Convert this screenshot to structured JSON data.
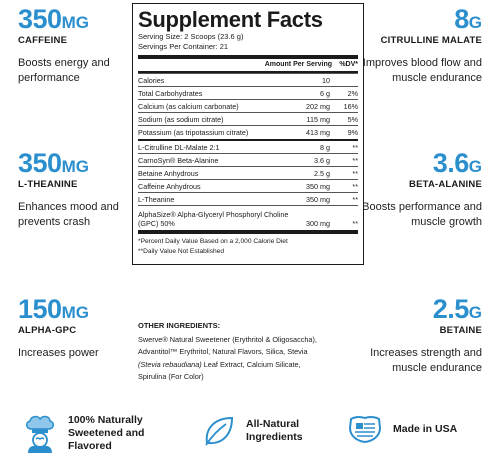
{
  "stats": {
    "caffeine": {
      "num": "350",
      "unit": "MG",
      "label": "CAFFEINE",
      "desc": "Boosts energy and performance"
    },
    "theanine": {
      "num": "350",
      "unit": "MG",
      "label": "L-THEANINE",
      "desc": "Enhances mood and prevents crash"
    },
    "alphagpc": {
      "num": "150",
      "unit": "MG",
      "label": "ALPHA-GPC",
      "desc": "Increases power"
    },
    "citrulline": {
      "num": "8",
      "unit": "G",
      "label": "CITRULLINE MALATE",
      "desc": "Improves blood flow and muscle endurance"
    },
    "betaalanine": {
      "num": "3.6",
      "unit": "G",
      "label": "BETA-ALANINE",
      "desc": "Boosts performance and muscle growth"
    },
    "betaine": {
      "num": "2.5",
      "unit": "G",
      "label": "BETAINE",
      "desc": "Increases strength and muscle endurance"
    }
  },
  "facts": {
    "title": "Supplement Facts",
    "serving_size": "Serving Size: 2 Scoops (23.6 g)",
    "servings": "Servings Per Container: 21",
    "col_amount": "Amount Per Serving",
    "col_dv": "%DV*",
    "rows": [
      {
        "name": "Calories",
        "amount": "10",
        "dv": ""
      },
      {
        "name": "Total Carbohydrates",
        "amount": "6 g",
        "dv": "2%"
      },
      {
        "name": "Calcium (as calcium carbonate)",
        "amount": "202 mg",
        "dv": "16%"
      },
      {
        "name": "Sodium (as sodium citrate)",
        "amount": "115 mg",
        "dv": "5%"
      },
      {
        "name": "Potassium (as tripotassium citrate)",
        "amount": "413 mg",
        "dv": "9%"
      }
    ],
    "rows2": [
      {
        "name": "L-Citrulline DL-Malate 2:1",
        "amount": "8 g",
        "dv": "**"
      },
      {
        "name": "CarnoSyn® Beta-Alanine",
        "amount": "3.6 g",
        "dv": "**"
      },
      {
        "name": "Betaine Anhydrous",
        "amount": "2.5 g",
        "dv": "**"
      },
      {
        "name": "Caffeine Anhydrous",
        "amount": "350 mg",
        "dv": "**"
      },
      {
        "name": "L-Theanine",
        "amount": "350 mg",
        "dv": "**"
      },
      {
        "name": "AlphaSize® Alpha-Glyceryl Phosphoryl Choline (GPC) 50%",
        "amount": "300 mg",
        "dv": "**"
      }
    ],
    "foot1": "*Percent Daily Value Based on a 2,000 Calorie Diet",
    "foot2": "**Daily Value Not Established"
  },
  "other": {
    "heading": "OTHER INGREDIENTS:",
    "line1": "Swerve® Natural Sweetener (Erythritol & Oligosaccha),",
    "line2": "Advantitol™ Erythritol, Natural Flavors,  Silica, Stevia",
    "line3_italic": "(Stevia rebaudiana)",
    "line3_rest": " Leaf Extract, Calcium Silicate,",
    "line4": "Spirulina (For Color)"
  },
  "badges": {
    "sweetened": {
      "line1": "100% Naturally",
      "line2": "Sweetened and",
      "line3": "Flavored",
      "icon": "chef-icon"
    },
    "natural": {
      "line1": "All-Natural",
      "line2": "Ingredients",
      "icon": "leaf-icon"
    },
    "usa": {
      "line1": "Made in USA",
      "icon": "usa-flag-icon"
    }
  },
  "colors": {
    "accent": "#2b8fce",
    "text": "#1b1b1b"
  }
}
